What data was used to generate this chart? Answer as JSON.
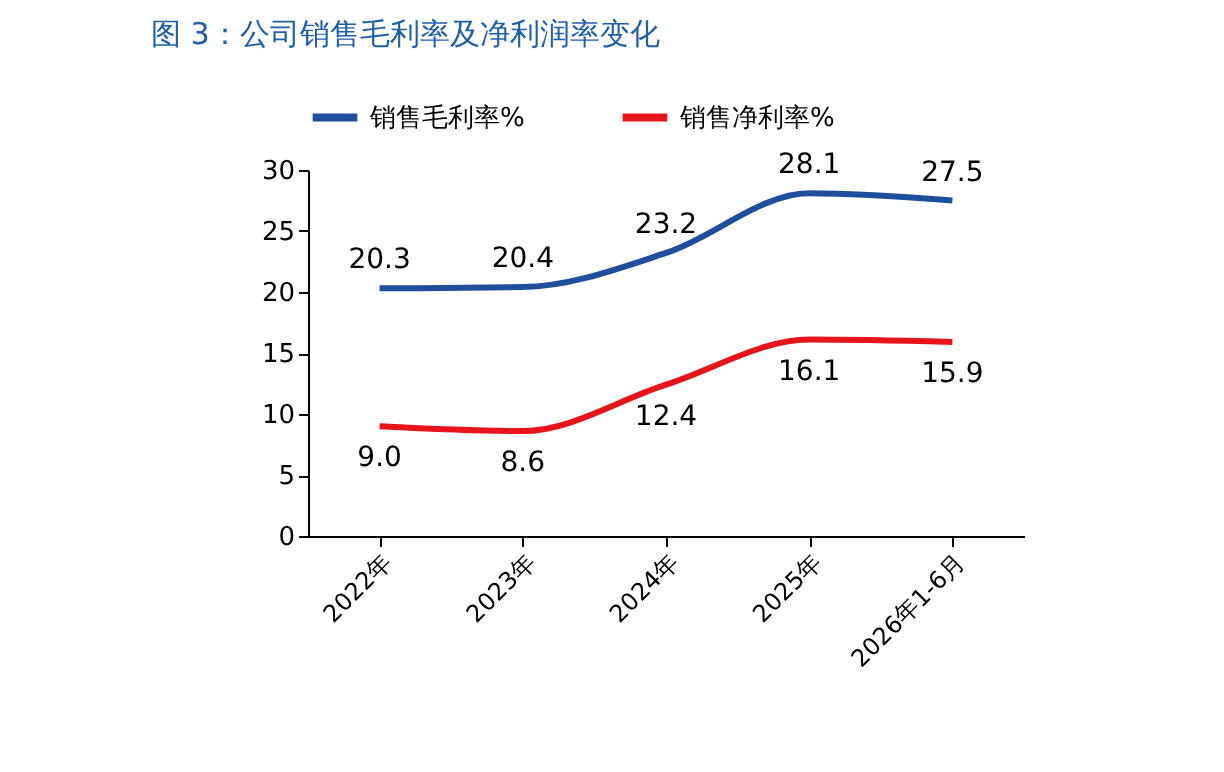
{
  "chart_data": {
    "type": "line",
    "title": "图 3：公司销售毛利率及净利润率变化",
    "categories": [
      "2022年",
      "2023年",
      "2024年",
      "2025年",
      "2026年1-6月"
    ],
    "series": [
      {
        "name": "销售毛利率%",
        "color": "#1f4e9c",
        "values": [
          20.3,
          20.4,
          23.2,
          28.1,
          27.5
        ],
        "value_labels": [
          "20.3",
          "20.4",
          "23.2",
          "28.1",
          "27.5"
        ]
      },
      {
        "name": "销售净利率%",
        "color": "#e8141c",
        "values": [
          9.0,
          8.6,
          12.4,
          16.1,
          15.9
        ],
        "value_labels": [
          "9.0",
          "8.6",
          "12.4",
          "16.1",
          "15.9"
        ]
      }
    ],
    "ylim": [
      0,
      30
    ],
    "yticks": [
      0,
      5,
      10,
      15,
      20,
      25,
      30
    ],
    "legend": "top",
    "grid": false
  }
}
